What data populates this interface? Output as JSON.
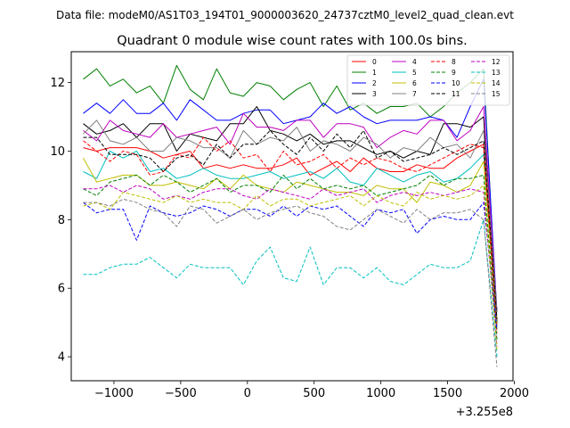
{
  "suptitle": "Data file: modeM0/AS1T03_194T01_9000003620_24737cztM0_level2_quad_clean.evt",
  "chart_data": {
    "type": "line",
    "title": "Quadrant 0 module wise count rates with 100.0s bins.",
    "xlabel": "",
    "ylabel": "",
    "x_offset_label": "+3.255e8",
    "xlim": [
      -1320,
      1990
    ],
    "ylim": [
      3.3,
      12.9
    ],
    "xticks": [
      -1000,
      -500,
      0,
      500,
      1000,
      1500,
      2000
    ],
    "xtick_labels": [
      "−1000",
      "−500",
      "0",
      "500",
      "1000",
      "1500",
      "2000"
    ],
    "yticks": [
      4,
      6,
      8,
      10,
      12
    ],
    "ytick_labels": [
      "4",
      "6",
      "8",
      "10",
      "12"
    ],
    "legend_position": "top-right",
    "x": [
      -1230,
      -1130,
      -1030,
      -930,
      -830,
      -730,
      -630,
      -530,
      -430,
      -330,
      -230,
      -130,
      -30,
      70,
      170,
      270,
      370,
      470,
      570,
      670,
      770,
      870,
      970,
      1070,
      1170,
      1270,
      1370,
      1470,
      1570,
      1670,
      1770,
      1870
    ],
    "series": [
      {
        "name": "0",
        "color": "#ff0000",
        "dash": "solid",
        "values": [
          10.1,
          10.0,
          10.1,
          10.1,
          10.1,
          10.0,
          9.8,
          9.9,
          10.0,
          9.5,
          9.6,
          9.5,
          9.6,
          9.5,
          9.5,
          9.6,
          9.8,
          9.3,
          9.5,
          9.7,
          9.4,
          9.8,
          9.5,
          9.4,
          9.4,
          9.6,
          9.5,
          9.5,
          9.8,
          10.0,
          10.2,
          5.0
        ]
      },
      {
        "name": "1",
        "color": "#008000",
        "dash": "solid",
        "values": [
          12.1,
          12.4,
          11.9,
          12.1,
          11.7,
          11.9,
          11.4,
          12.5,
          11.8,
          11.5,
          12.4,
          11.7,
          11.6,
          12.0,
          11.9,
          11.5,
          11.8,
          12.0,
          11.3,
          11.9,
          11.2,
          11.4,
          11.1,
          11.3,
          11.3,
          11.4,
          11.0,
          11.3,
          11.7,
          12.0,
          12.4,
          5.0
        ]
      },
      {
        "name": "2",
        "color": "#0000ff",
        "dash": "solid",
        "values": [
          11.1,
          11.4,
          11.1,
          11.5,
          11.1,
          11.1,
          11.4,
          10.9,
          11.5,
          11.2,
          10.9,
          10.9,
          11.1,
          11.2,
          11.2,
          10.8,
          10.9,
          11.0,
          11.4,
          11.1,
          11.3,
          11.0,
          10.8,
          10.9,
          10.9,
          10.9,
          11.0,
          10.9,
          10.4,
          11.3,
          12.1,
          5.3
        ]
      },
      {
        "name": "3",
        "color": "#000000",
        "dash": "solid",
        "values": [
          10.8,
          10.5,
          10.6,
          10.8,
          10.4,
          10.8,
          10.8,
          10.0,
          10.5,
          10.4,
          10.3,
          10.8,
          10.8,
          11.3,
          10.6,
          10.5,
          10.3,
          10.5,
          10.2,
          10.3,
          10.3,
          10.1,
          9.9,
          10.0,
          9.8,
          10.0,
          9.9,
          10.8,
          10.8,
          10.7,
          11.0,
          4.9
        ]
      },
      {
        "name": "4",
        "color": "#bf00bf",
        "dash": "solid",
        "values": [
          10.6,
          10.3,
          10.9,
          10.6,
          10.5,
          10.4,
          10.8,
          10.4,
          10.5,
          10.6,
          10.7,
          10.2,
          11.1,
          10.7,
          10.7,
          10.6,
          10.9,
          10.9,
          10.4,
          10.8,
          10.8,
          10.7,
          10.1,
          10.4,
          10.6,
          10.5,
          10.9,
          10.9,
          10.3,
          10.6,
          11.3,
          5.3
        ]
      },
      {
        "name": "5",
        "color": "#00bfbf",
        "dash": "solid",
        "values": [
          9.4,
          9.2,
          10.0,
          9.8,
          10.0,
          9.4,
          9.5,
          9.2,
          9.3,
          9.5,
          9.3,
          9.2,
          9.2,
          9.3,
          9.4,
          9.2,
          9.3,
          9.4,
          9.2,
          9.5,
          9.1,
          9.0,
          9.5,
          9.3,
          9.1,
          9.3,
          9.4,
          9.1,
          9.2,
          9.5,
          9.9,
          4.8
        ]
      },
      {
        "name": "6",
        "color": "#bfbf00",
        "dash": "solid",
        "values": [
          9.8,
          9.1,
          9.2,
          9.3,
          9.3,
          9.0,
          9.0,
          9.1,
          9.0,
          8.9,
          9.2,
          8.9,
          9.3,
          9.0,
          8.9,
          8.8,
          9.1,
          9.0,
          8.9,
          8.8,
          8.8,
          8.7,
          9.0,
          8.9,
          8.9,
          8.5,
          9.1,
          9.0,
          8.8,
          9.0,
          9.7,
          4.9
        ]
      },
      {
        "name": "7",
        "color": "#808080",
        "dash": "solid",
        "values": [
          10.5,
          10.9,
          10.3,
          10.2,
          10.4,
          10.0,
          10.0,
          10.4,
          10.3,
          10.1,
          10.1,
          9.8,
          10.6,
          10.2,
          10.4,
          10.3,
          10.7,
          10.0,
          10.3,
          10.2,
          10.0,
          10.4,
          10.2,
          9.8,
          10.1,
          10.0,
          10.4,
          10.1,
          10.2,
          9.8,
          10.6,
          5.3
        ]
      },
      {
        "name": "8",
        "color": "#ff0000",
        "dash": "dashed",
        "values": [
          10.3,
          10.0,
          9.7,
          10.0,
          9.9,
          9.3,
          9.4,
          9.9,
          9.8,
          10.4,
          10.0,
          10.3,
          9.8,
          9.9,
          9.4,
          10.0,
          9.6,
          9.7,
          9.9,
          9.5,
          9.8,
          9.6,
          9.8,
          9.7,
          9.5,
          9.4,
          9.6,
          9.8,
          10.0,
          10.2,
          10.1,
          4.7
        ]
      },
      {
        "name": "9",
        "color": "#008000",
        "dash": "dashed",
        "values": [
          8.9,
          8.7,
          9.1,
          9.2,
          9.3,
          9.0,
          9.3,
          9.1,
          8.8,
          9.0,
          9.2,
          8.8,
          9.0,
          9.0,
          8.8,
          9.3,
          8.9,
          9.2,
          8.9,
          9.0,
          8.9,
          9.0,
          8.7,
          8.8,
          8.9,
          9.0,
          9.3,
          9.0,
          9.2,
          9.2,
          9.3,
          4.5
        ]
      },
      {
        "name": "10",
        "color": "#0000ff",
        "dash": "dashed",
        "values": [
          8.5,
          8.2,
          8.3,
          8.3,
          7.4,
          8.4,
          8.2,
          8.1,
          8.2,
          8.4,
          8.3,
          8.1,
          8.3,
          8.3,
          8.1,
          8.4,
          8.1,
          8.4,
          8.3,
          8.4,
          8.1,
          7.8,
          8.3,
          8.2,
          8.3,
          7.6,
          8.0,
          8.1,
          8.0,
          8.0,
          8.5,
          4.8
        ]
      },
      {
        "name": "11",
        "color": "#000000",
        "dash": "dashed",
        "values": [
          10.4,
          10.4,
          9.9,
          9.9,
          9.9,
          9.8,
          9.4,
          9.8,
          9.9,
          9.6,
          10.2,
          9.8,
          10.2,
          10.2,
          10.6,
          10.2,
          9.9,
          10.4,
          10.0,
          10.5,
          10.1,
          10.6,
          9.8,
          10.0,
          9.7,
          9.8,
          9.9,
          10.1,
          9.9,
          10.1,
          10.3,
          5.1
        ]
      },
      {
        "name": "12",
        "color": "#bf00bf",
        "dash": "dashed",
        "values": [
          8.9,
          8.9,
          9.0,
          8.8,
          9.0,
          8.9,
          8.6,
          8.7,
          8.6,
          8.8,
          8.9,
          8.9,
          8.7,
          8.6,
          8.9,
          8.8,
          8.7,
          8.6,
          8.9,
          8.7,
          8.8,
          8.9,
          8.5,
          8.7,
          8.8,
          8.7,
          8.8,
          8.7,
          8.8,
          8.9,
          8.8,
          4.3
        ]
      },
      {
        "name": "13",
        "color": "#00bfbf",
        "dash": "dashed",
        "values": [
          6.4,
          6.4,
          6.6,
          6.7,
          6.7,
          6.9,
          6.6,
          6.3,
          6.7,
          6.6,
          6.6,
          6.6,
          6.1,
          6.8,
          7.2,
          6.3,
          6.2,
          7.2,
          6.1,
          6.6,
          6.6,
          6.3,
          6.6,
          6.2,
          6.1,
          6.4,
          6.7,
          6.6,
          6.6,
          6.8,
          8.0,
          4.0
        ]
      },
      {
        "name": "14",
        "color": "#bfbf00",
        "dash": "dashed",
        "values": [
          8.4,
          8.5,
          8.3,
          8.8,
          8.7,
          8.6,
          8.5,
          8.7,
          8.5,
          8.6,
          8.5,
          8.5,
          8.3,
          8.7,
          8.4,
          8.6,
          8.6,
          8.4,
          8.5,
          8.6,
          8.7,
          8.4,
          8.7,
          8.5,
          8.4,
          8.8,
          8.6,
          8.7,
          8.6,
          8.7,
          9.0,
          4.2
        ]
      },
      {
        "name": "15",
        "color": "#808080",
        "dash": "dashed",
        "values": [
          8.5,
          8.5,
          8.4,
          8.6,
          8.5,
          8.3,
          8.2,
          7.8,
          8.4,
          8.3,
          7.9,
          8.1,
          8.3,
          8.0,
          8.2,
          8.3,
          8.4,
          8.2,
          8.1,
          7.8,
          7.7,
          8.0,
          8.3,
          8.1,
          7.9,
          8.3,
          8.0,
          8.2,
          8.2,
          8.3,
          8.0,
          3.7
        ]
      }
    ]
  }
}
